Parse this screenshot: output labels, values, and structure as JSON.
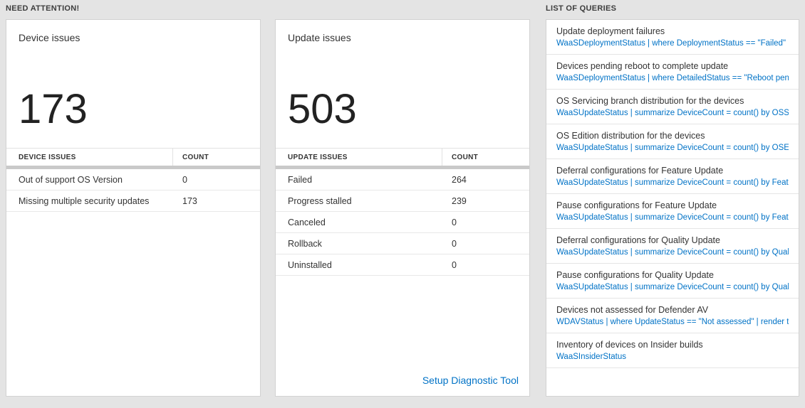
{
  "colors": {
    "accent_blue": "#0072c6",
    "page_bg": "#e4e4e4"
  },
  "need_attention": {
    "header": "NEED ATTENTION!",
    "device_card": {
      "title": "Device issues",
      "total": "173",
      "columns": {
        "label": "DEVICE ISSUES",
        "count": "COUNT"
      },
      "rows": [
        {
          "label": "Out of support OS Version",
          "count": "0"
        },
        {
          "label": "Missing multiple security updates",
          "count": "173"
        }
      ]
    },
    "update_card": {
      "title": "Update issues",
      "total": "503",
      "columns": {
        "label": "UPDATE ISSUES",
        "count": "COUNT"
      },
      "rows": [
        {
          "label": "Failed",
          "count": "264"
        },
        {
          "label": "Progress stalled",
          "count": "239"
        },
        {
          "label": "Canceled",
          "count": "0"
        },
        {
          "label": "Rollback",
          "count": "0"
        },
        {
          "label": "Uninstalled",
          "count": "0"
        }
      ],
      "footer_link": "Setup Diagnostic Tool"
    }
  },
  "query_list": {
    "header": "LIST OF QUERIES",
    "items": [
      {
        "title": "Update deployment failures",
        "query": "WaaSDeploymentStatus | where DeploymentStatus == \"Failed\" |..."
      },
      {
        "title": "Devices pending reboot to complete update",
        "query": "WaaSDeploymentStatus | where DetailedStatus == \"Reboot pend..."
      },
      {
        "title": "OS Servicing branch distribution for the devices",
        "query": "WaaSUpdateStatus | summarize DeviceCount = count() by OSSer..."
      },
      {
        "title": "OS Edition distribution for the devices",
        "query": "WaaSUpdateStatus | summarize DeviceCount = count() by OSEdit..."
      },
      {
        "title": "Deferral configurations for Feature Update",
        "query": "WaaSUpdateStatus | summarize DeviceCount = count() by Featur..."
      },
      {
        "title": "Pause configurations for Feature Update",
        "query": "WaaSUpdateStatus | summarize DeviceCount = count() by Featur..."
      },
      {
        "title": "Deferral configurations for Quality Update",
        "query": "WaaSUpdateStatus | summarize DeviceCount = count() by Qualit..."
      },
      {
        "title": "Pause configurations for Quality Update",
        "query": "WaaSUpdateStatus | summarize DeviceCount = count() by Qualit..."
      },
      {
        "title": "Devices not assessed for Defender AV",
        "query": "WDAVStatus | where UpdateStatus == \"Not assessed\" | render ta..."
      },
      {
        "title": "Inventory of devices on Insider builds",
        "query": "WaaSInsiderStatus"
      }
    ]
  }
}
